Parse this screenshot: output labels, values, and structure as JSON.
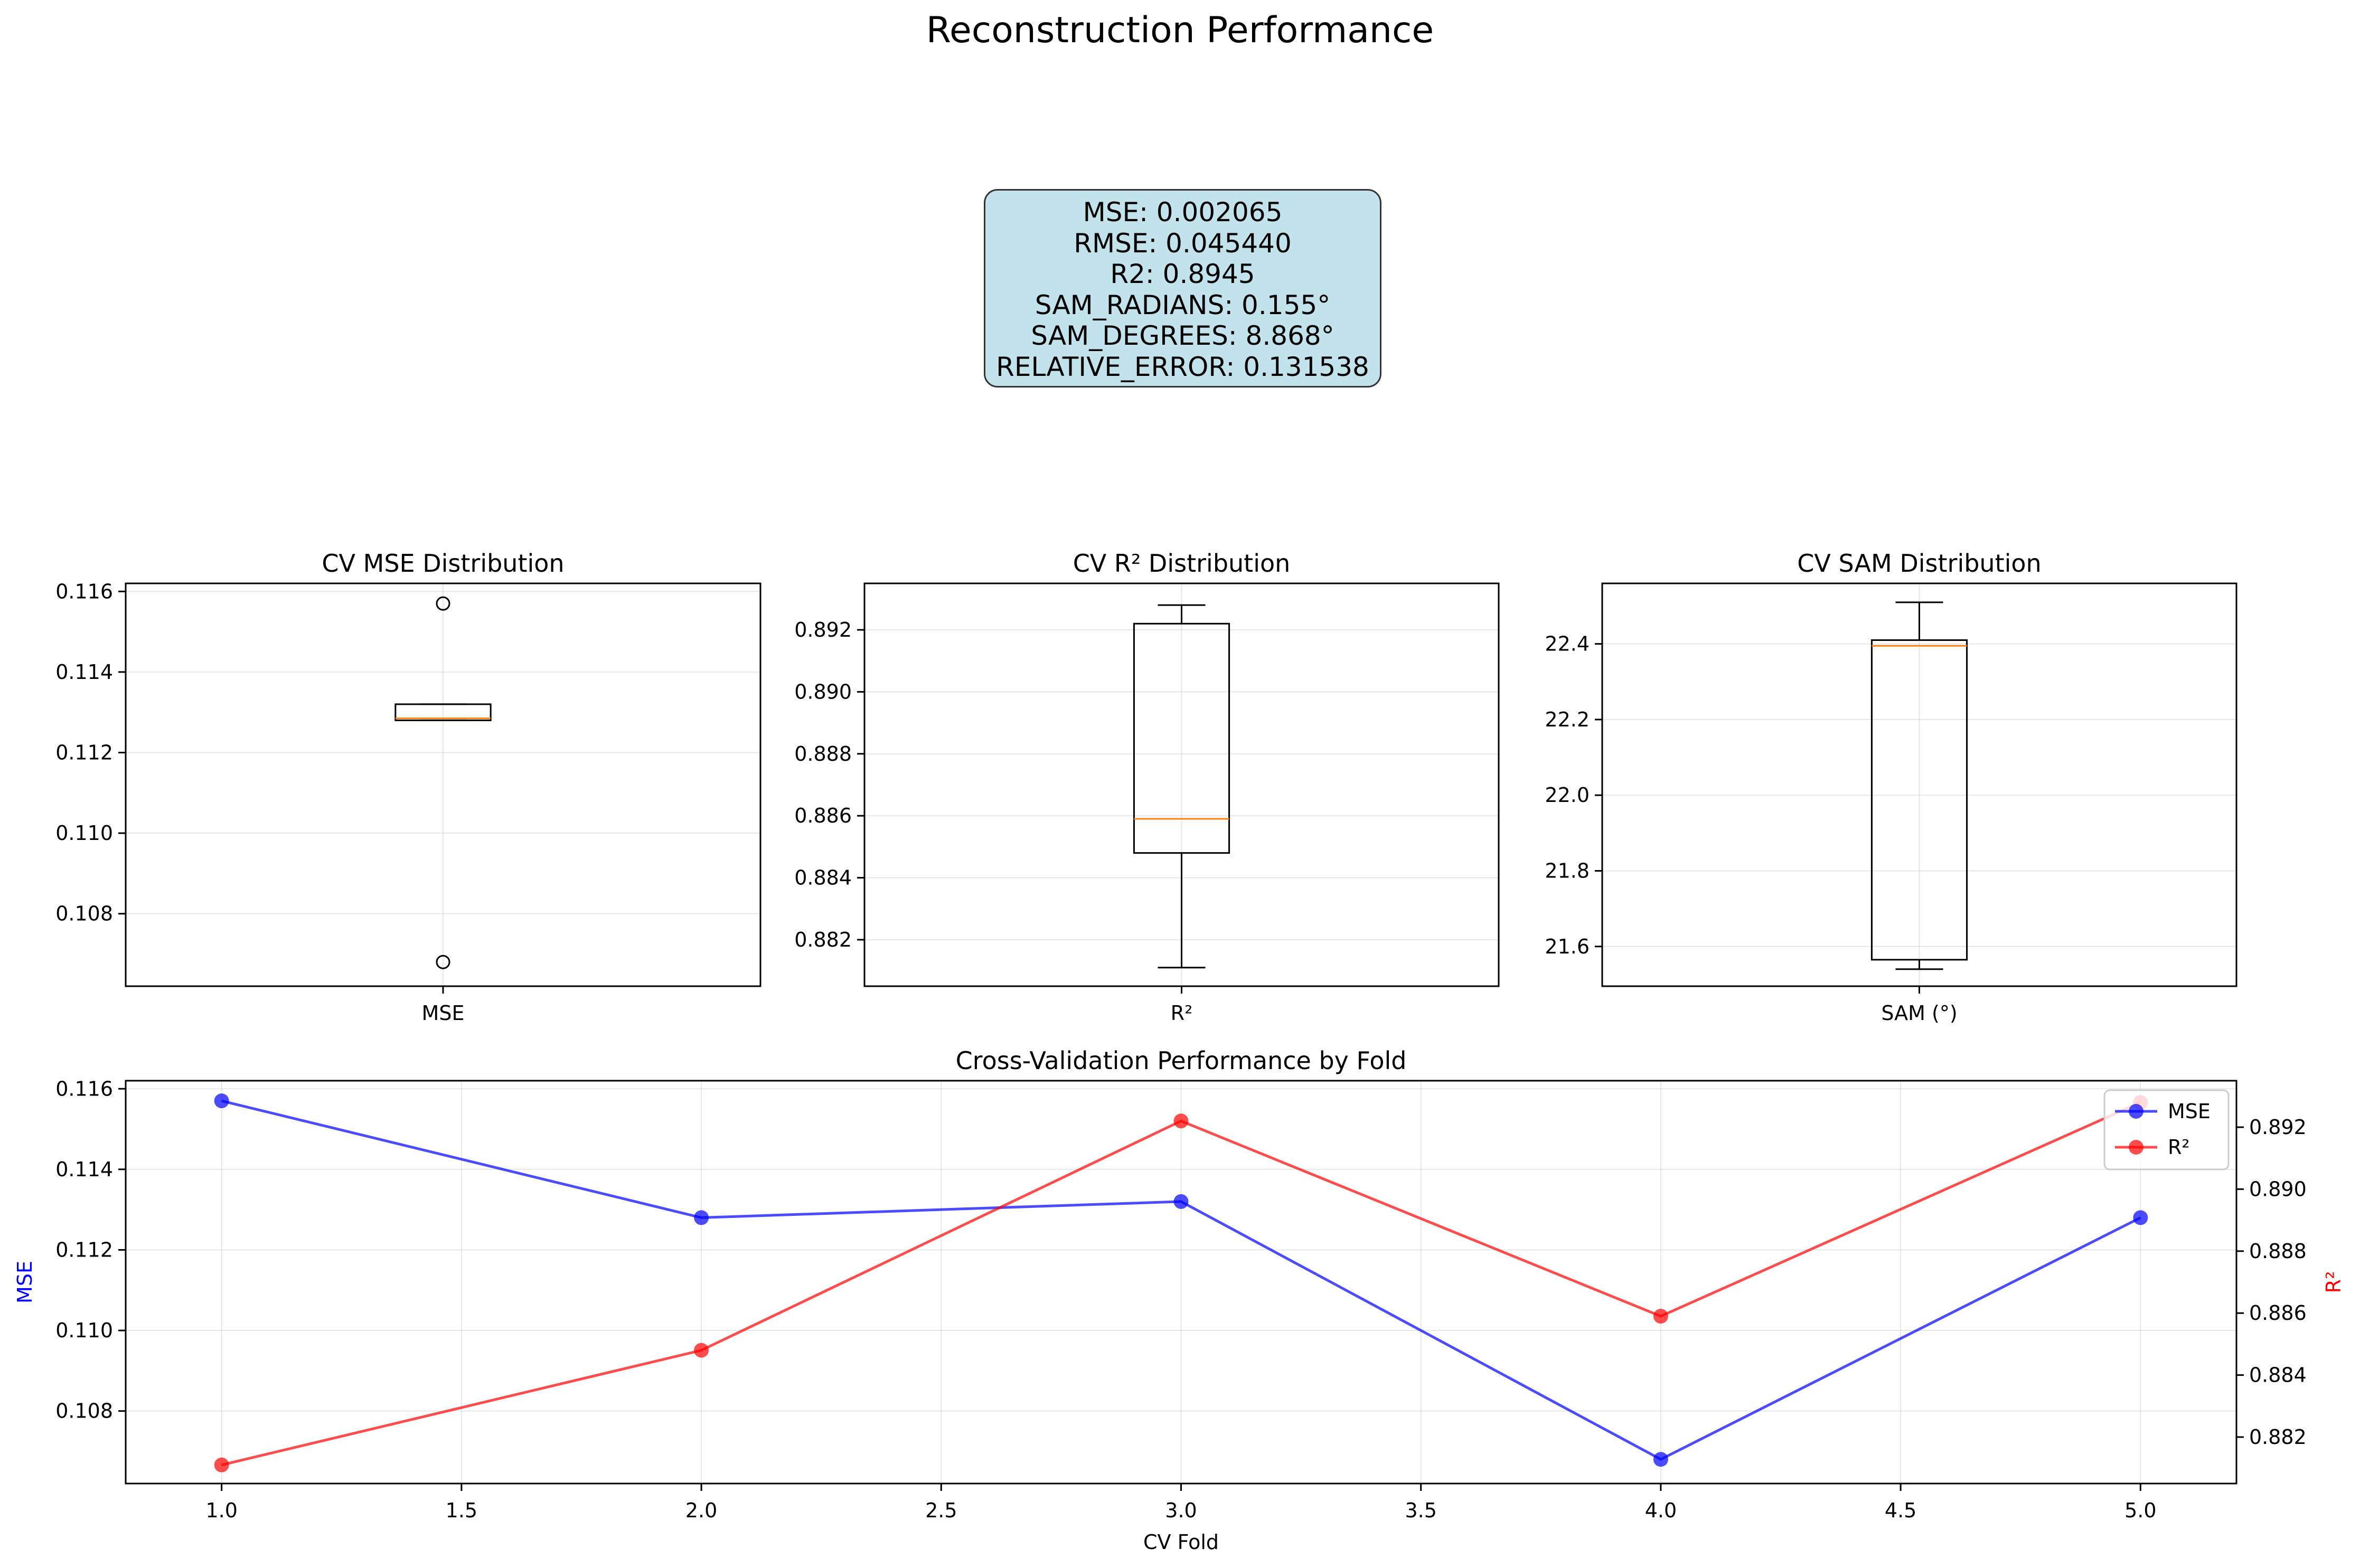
{
  "figure": {
    "title": "Reconstruction Performance"
  },
  "metrics_box": {
    "lines": [
      "MSE: 0.002065",
      "RMSE: 0.045440",
      "R2: 0.8945",
      "SAM_RADIANS: 0.155°",
      "SAM_DEGREES: 8.868°",
      "RELATIVE_ERROR: 0.131538"
    ],
    "background": "#add8e6"
  },
  "chart_data": [
    {
      "type": "box",
      "title": "CV MSE Distribution",
      "categories": [
        "MSE"
      ],
      "ylim": [
        0.1062,
        0.1162
      ],
      "yticks": [
        0.108,
        0.11,
        0.112,
        0.114,
        0.116
      ],
      "ytick_labels": [
        "0.108",
        "0.110",
        "0.112",
        "0.114",
        "0.116"
      ],
      "box": {
        "min": 0.1128,
        "q1": 0.1128,
        "median": 0.11285,
        "q3": 0.1132,
        "max": 0.1132
      },
      "outliers": [
        0.1157,
        0.1068
      ],
      "grid": true,
      "median_color": "#ff7f0e"
    },
    {
      "type": "box",
      "title": "CV R² Distribution",
      "categories": [
        "R²"
      ],
      "ylim": [
        0.8805,
        0.8935
      ],
      "yticks": [
        0.882,
        0.884,
        0.886,
        0.888,
        0.89,
        0.892
      ],
      "ytick_labels": [
        "0.882",
        "0.884",
        "0.886",
        "0.888",
        "0.890",
        "0.892"
      ],
      "box": {
        "min": 0.8811,
        "q1": 0.8848,
        "median": 0.8859,
        "q3": 0.8922,
        "max": 0.8928
      },
      "outliers": [],
      "grid": true,
      "median_color": "#ff7f0e"
    },
    {
      "type": "box",
      "title": "CV SAM Distribution",
      "categories": [
        "SAM (°)"
      ],
      "ylim": [
        21.495,
        22.56
      ],
      "yticks": [
        21.6,
        21.8,
        22.0,
        22.2,
        22.4
      ],
      "ytick_labels": [
        "21.6",
        "21.8",
        "22.0",
        "22.2",
        "22.4"
      ],
      "box": {
        "min": 21.54,
        "q1": 21.565,
        "median": 22.395,
        "q3": 22.41,
        "max": 22.51
      },
      "outliers": [],
      "grid": true,
      "median_color": "#ff7f0e"
    },
    {
      "type": "line",
      "title": "Cross-Validation Performance by Fold",
      "xlabel": "CV Fold",
      "ylabel": "MSE",
      "ylabel_right": "R²",
      "x": [
        1.0,
        2.0,
        3.0,
        4.0,
        5.0
      ],
      "xlim": [
        0.8,
        5.2
      ],
      "xticks": [
        1.0,
        1.5,
        2.0,
        2.5,
        3.0,
        3.5,
        4.0,
        4.5,
        5.0
      ],
      "xtick_labels": [
        "1.0",
        "1.5",
        "2.0",
        "2.5",
        "3.0",
        "3.5",
        "4.0",
        "4.5",
        "5.0"
      ],
      "ylim": [
        0.1062,
        0.1162
      ],
      "yticks": [
        0.108,
        0.11,
        0.112,
        0.114,
        0.116
      ],
      "ytick_labels": [
        "0.108",
        "0.110",
        "0.112",
        "0.114",
        "0.116"
      ],
      "ylim_right": [
        0.8805,
        0.8935
      ],
      "yticks_right": [
        0.882,
        0.884,
        0.886,
        0.888,
        0.89,
        0.892
      ],
      "ytick_labels_right": [
        "0.882",
        "0.884",
        "0.886",
        "0.888",
        "0.890",
        "0.892"
      ],
      "series": [
        {
          "name": "MSE",
          "axis": "left",
          "color": "#0000ff",
          "values": [
            0.1157,
            0.1128,
            0.1132,
            0.1068,
            0.1128
          ]
        },
        {
          "name": "R²",
          "axis": "right",
          "color": "#ff0000",
          "values": [
            0.8811,
            0.8848,
            0.8922,
            0.8859,
            0.8928
          ]
        }
      ],
      "grid": true,
      "legend": "upper right"
    }
  ]
}
